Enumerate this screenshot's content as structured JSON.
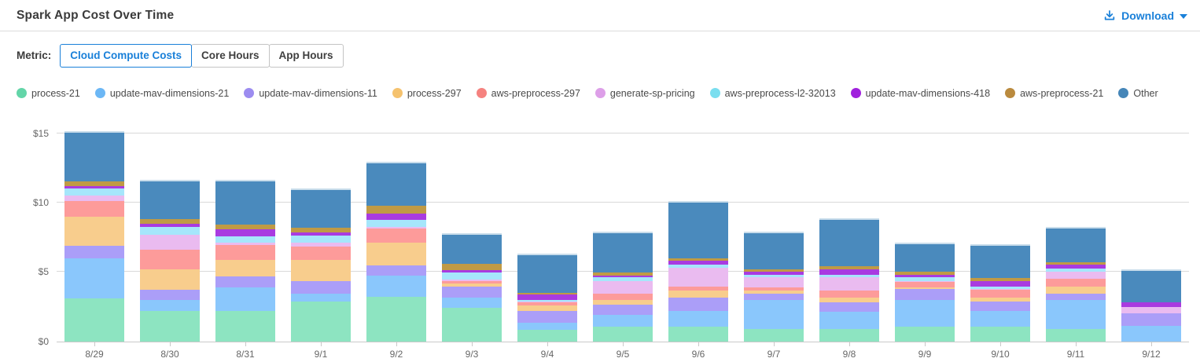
{
  "header": {
    "title": "Spark App Cost Over Time",
    "download_label": "Download"
  },
  "metric": {
    "label": "Metric:",
    "options": [
      {
        "label": "Cloud Compute Costs",
        "selected": true
      },
      {
        "label": "Core Hours",
        "selected": false
      },
      {
        "label": "App Hours",
        "selected": false
      }
    ],
    "accent_color": "#1a80d9"
  },
  "chart_data": {
    "type": "bar",
    "stacked": true,
    "title": "Spark App Cost Over Time",
    "xlabel": "",
    "ylabel": "",
    "grid": true,
    "legend_position": "top",
    "ylim": [
      0,
      16.5
    ],
    "ytick_labels": [
      "$0",
      "$5",
      "$10",
      "$15"
    ],
    "ytick_values": [
      0,
      5,
      10,
      15
    ],
    "currency": "$",
    "categories": [
      "8/29",
      "8/30",
      "8/31",
      "9/1",
      "9/2",
      "9/3",
      "9/4",
      "9/5",
      "9/6",
      "9/7",
      "9/8",
      "9/9",
      "9/10",
      "9/11",
      "9/12"
    ],
    "series": [
      {
        "name": "process-21",
        "color": "#63d5a8",
        "bar_color": "#8de4c1",
        "values": [
          3.1,
          2.2,
          2.2,
          2.85,
          3.2,
          2.4,
          0.8,
          1.05,
          1.05,
          0.85,
          0.9,
          1.05,
          1.05,
          0.85,
          0
        ]
      },
      {
        "name": "update-mav-dimensions-21",
        "color": "#6cb7f5",
        "bar_color": "#8ac7fc",
        "values": [
          2.9,
          0.75,
          1.7,
          0.6,
          1.55,
          0.75,
          0.55,
          0.85,
          1.15,
          2.1,
          1.2,
          1.9,
          1.15,
          2.1,
          1.1
        ]
      },
      {
        "name": "update-mav-dimensions-11",
        "color": "#9c8cf0",
        "bar_color": "#ab9ef8",
        "values": [
          0.9,
          0.75,
          0.75,
          0.9,
          0.7,
          0.8,
          0.85,
          0.75,
          0.95,
          0.45,
          0.7,
          0.8,
          0.65,
          0.5,
          0.9
        ]
      },
      {
        "name": "process-297",
        "color": "#f5c26e",
        "bar_color": "#f8cd8d",
        "values": [
          2.1,
          1.5,
          1.2,
          1.5,
          1.65,
          0.2,
          0.4,
          0.3,
          0.5,
          0.25,
          0.35,
          0.15,
          0.3,
          0.5,
          0
        ]
      },
      {
        "name": "aws-preprocess-297",
        "color": "#f5827f",
        "bar_color": "#fd9b9a",
        "values": [
          1.1,
          1.4,
          1.1,
          0.95,
          1.05,
          0.2,
          0.2,
          0.5,
          0.3,
          0.25,
          0.5,
          0.35,
          0.55,
          0.55,
          0
        ]
      },
      {
        "name": "generate-sp-pricing",
        "color": "#dd9fe8",
        "bar_color": "#eabbf0",
        "values": [
          0.4,
          1.1,
          0.15,
          0.3,
          0.1,
          0.1,
          0.05,
          0.9,
          1.35,
          0.7,
          0.95,
          0.1,
          0.05,
          0.5,
          0.45
        ]
      },
      {
        "name": "aws-preprocess-l2-32013",
        "color": "#7adeef",
        "bar_color": "#a6e6fb",
        "values": [
          0.5,
          0.55,
          0.45,
          0.5,
          0.5,
          0.5,
          0.15,
          0.25,
          0.2,
          0.2,
          0.2,
          0.25,
          0.2,
          0.25,
          0
        ]
      },
      {
        "name": "update-mav-dimensions-418",
        "color": "#a020dd",
        "bar_color": "#a93be0",
        "values": [
          0.2,
          0.2,
          0.5,
          0.25,
          0.45,
          0.15,
          0.35,
          0.15,
          0.3,
          0.2,
          0.4,
          0.2,
          0.4,
          0.25,
          0.35
        ]
      },
      {
        "name": "aws-preprocess-21",
        "color": "#ba8a3e",
        "bar_color": "#c09a45",
        "values": [
          0.3,
          0.35,
          0.35,
          0.35,
          0.55,
          0.5,
          0.15,
          0.2,
          0.2,
          0.2,
          0.2,
          0.2,
          0.2,
          0.2,
          0
        ]
      },
      {
        "name": "Other",
        "color": "#4586b8",
        "bar_color": "#4a8abd",
        "values": [
          3.55,
          2.7,
          3.1,
          2.7,
          3.05,
          2.1,
          2.7,
          2.85,
          4.0,
          2.6,
          3.35,
          2.0,
          2.35,
          2.45,
          2.25
        ]
      }
    ],
    "bar_totals": [
      15.05,
      11.5,
      11.5,
      10.9,
      12.8,
      7.7,
      6.2,
      7.8,
      10.0,
      7.8,
      8.75,
      7.0,
      6.9,
      8.15,
      5.05
    ]
  }
}
